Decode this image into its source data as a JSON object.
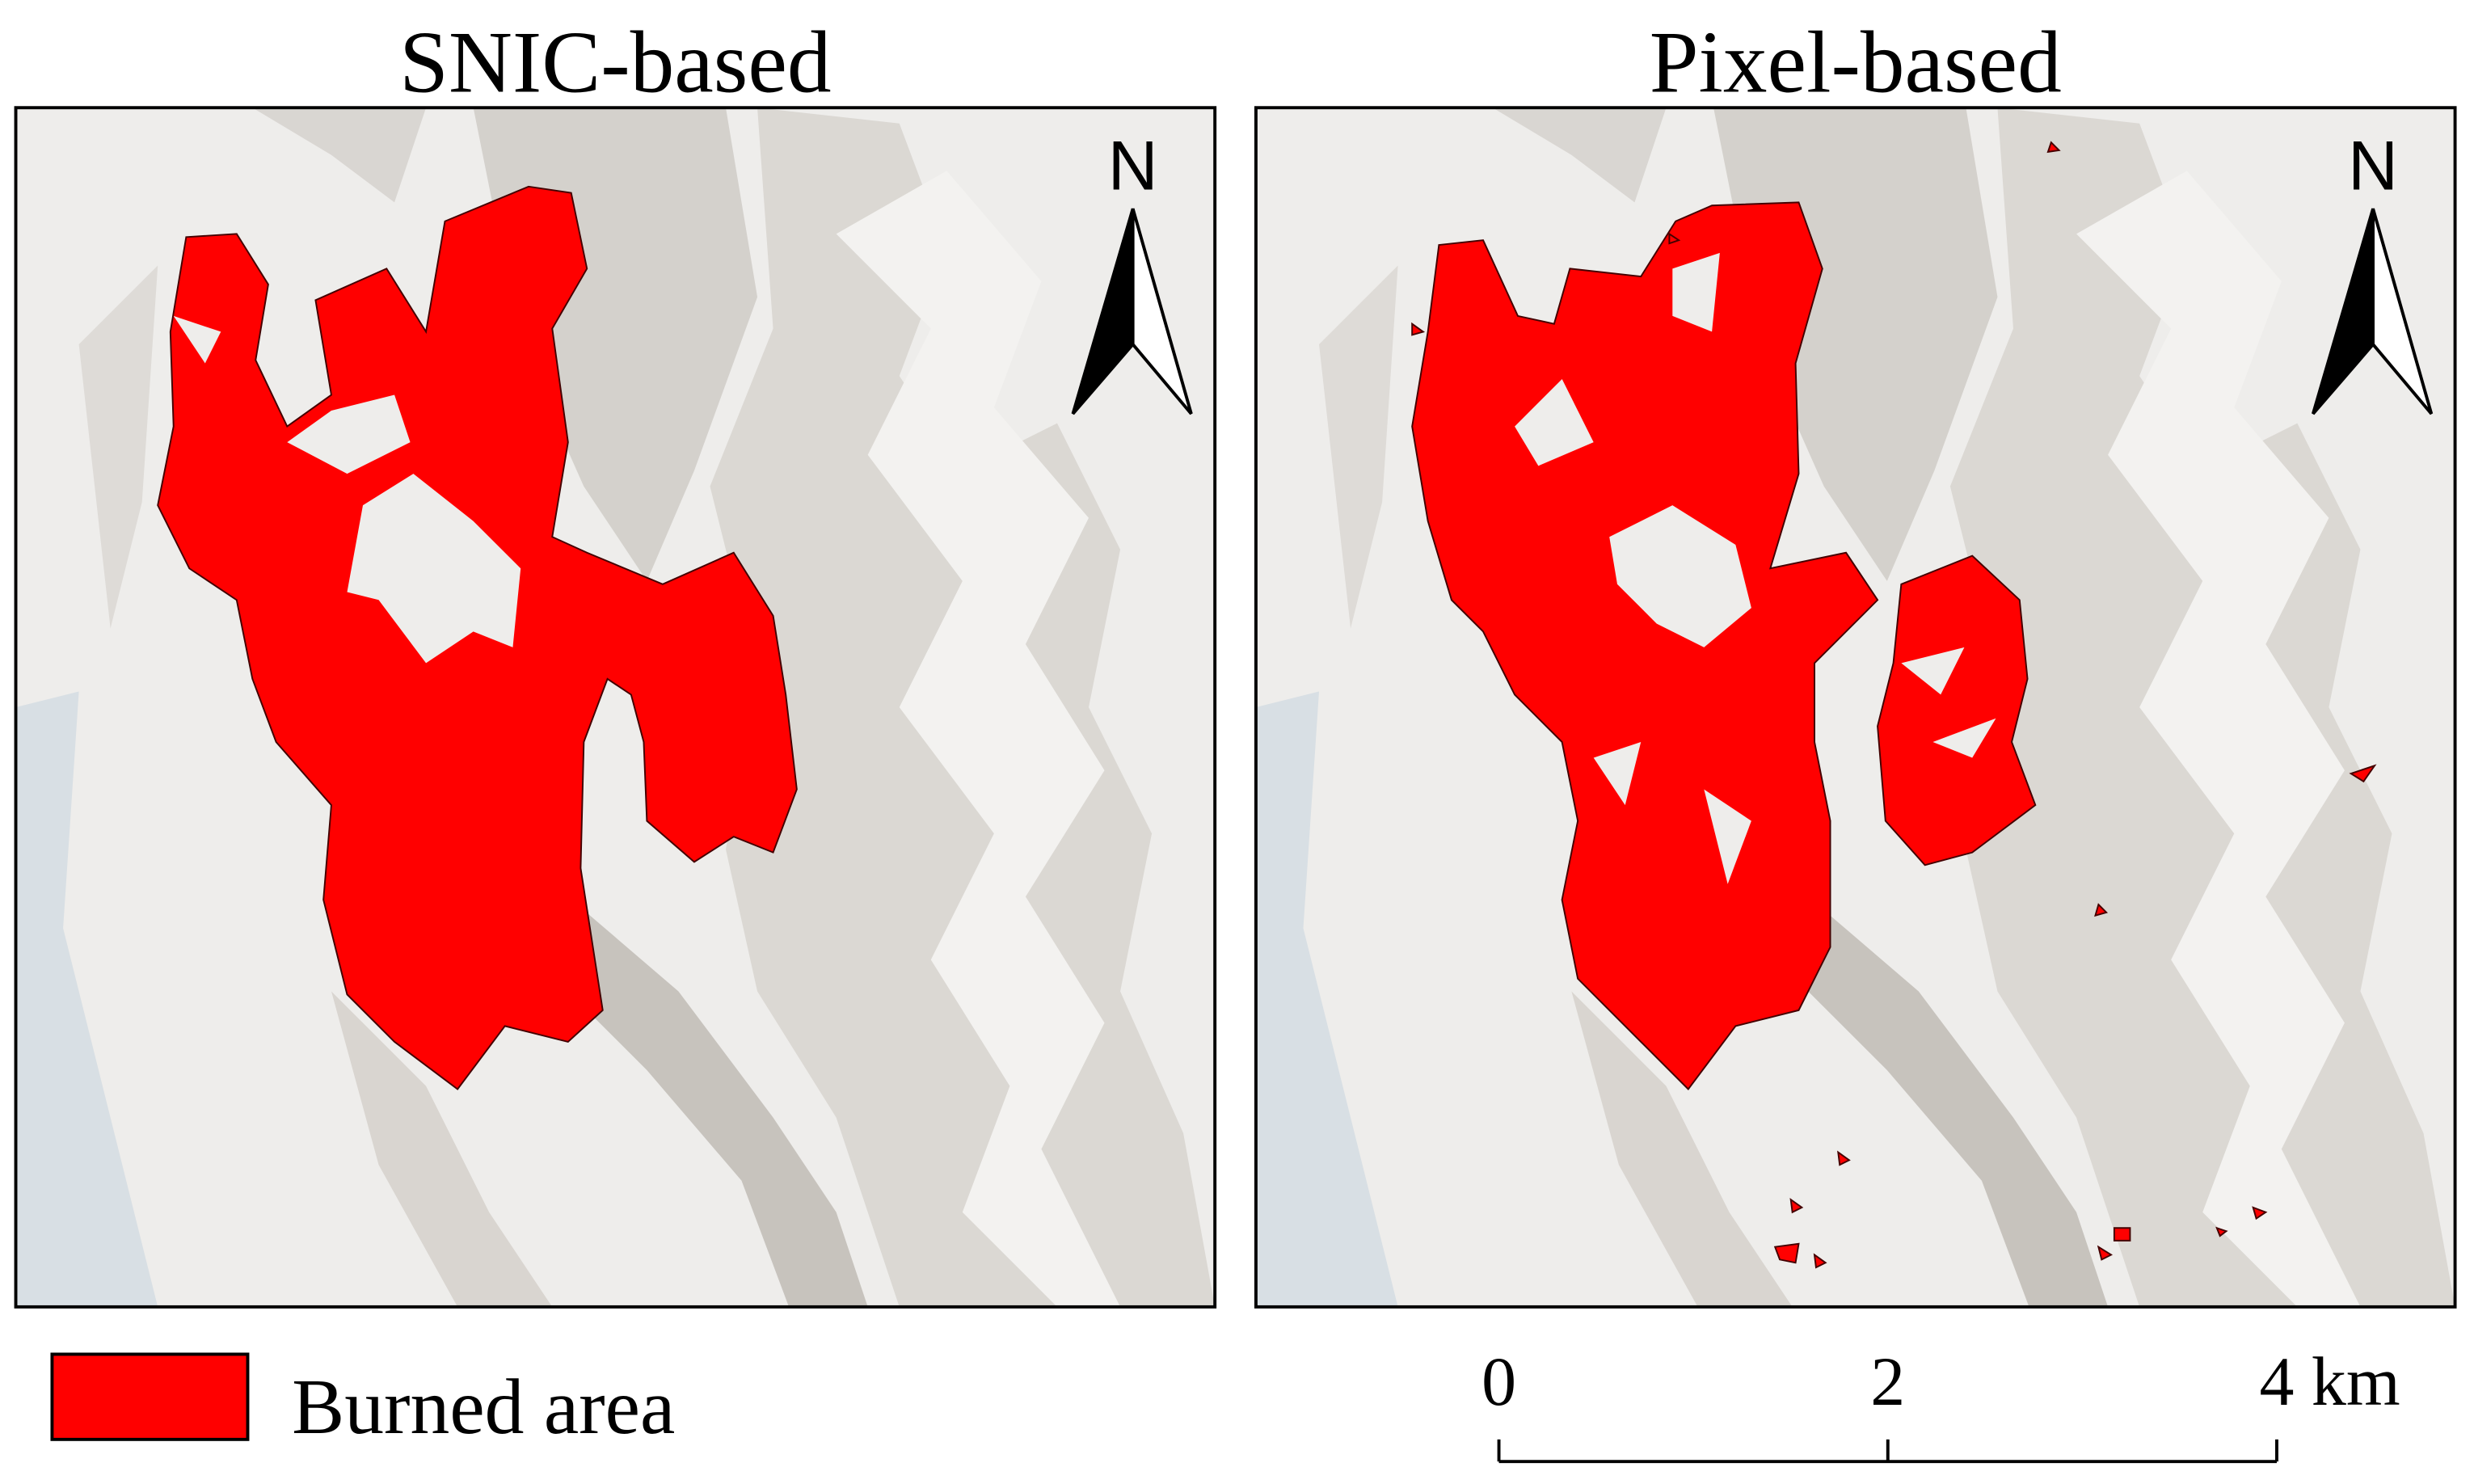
{
  "panels": [
    {
      "title": "SNIC-based",
      "north": "N"
    },
    {
      "title": "Pixel-based",
      "north": "N"
    }
  ],
  "legend": {
    "label": "Burned area",
    "color": "#ff0000"
  },
  "scale_bar": {
    "ticks": [
      0,
      2,
      4
    ],
    "unit": "km"
  }
}
